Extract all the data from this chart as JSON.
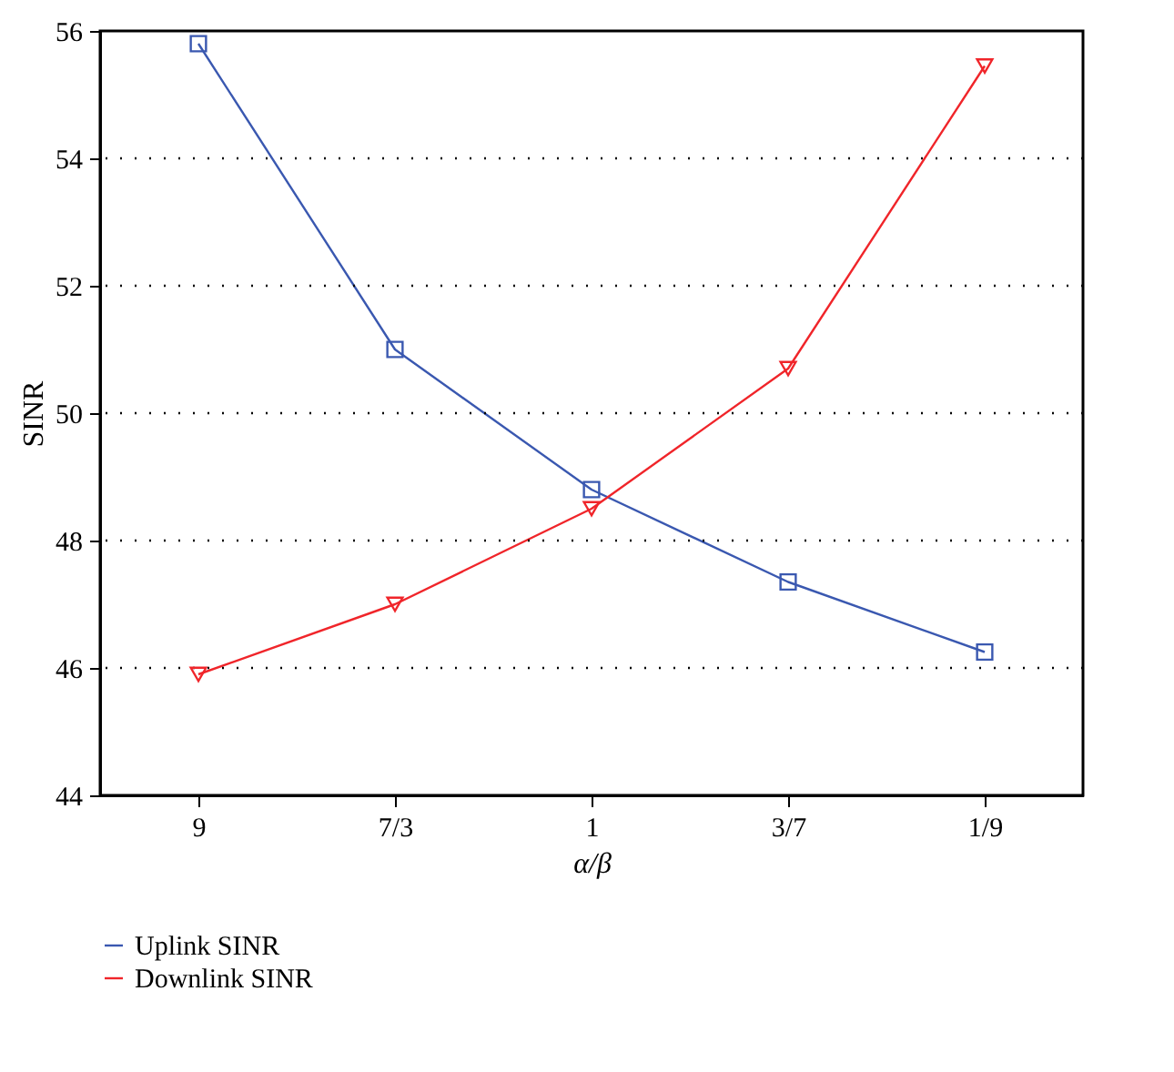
{
  "chart_data": {
    "type": "line",
    "xlabel": "α/β",
    "ylabel": "SINR",
    "categories": [
      "9",
      "7/3",
      "1",
      "3/7",
      "1/9"
    ],
    "series": [
      {
        "name": "Uplink SINR",
        "color": "#3a58b0",
        "marker": "square",
        "values": [
          55.8,
          51.0,
          48.8,
          47.35,
          46.25
        ]
      },
      {
        "name": "Downlink SINR",
        "color": "#f0252a",
        "marker": "triangle-down",
        "values": [
          45.9,
          47.0,
          48.5,
          50.7,
          55.45
        ]
      }
    ],
    "ylim": [
      44,
      56
    ],
    "yticks": [
      44,
      46,
      48,
      50,
      52,
      54,
      56
    ],
    "grid": "y",
    "legend": "bottom left",
    "line_style": "solid"
  }
}
